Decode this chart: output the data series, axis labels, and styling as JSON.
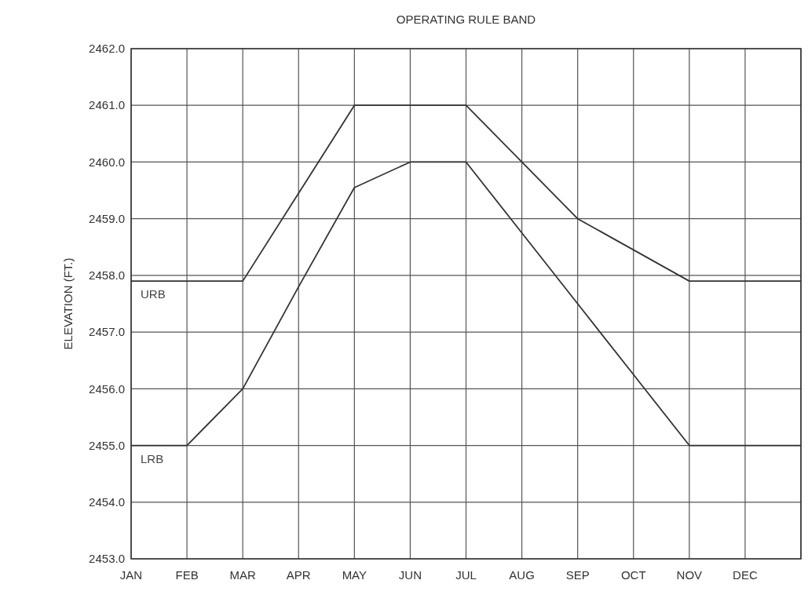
{
  "chart_data": {
    "type": "line",
    "title": "OPERATING RULE BAND",
    "ylabel": "ELEVATION (FT.)",
    "categories": [
      "JAN",
      "FEB",
      "MAR",
      "APR",
      "MAY",
      "JUN",
      "JUL",
      "AUG",
      "SEP",
      "OCT",
      "NOV",
      "DEC",
      null
    ],
    "series": [
      {
        "name": "URB",
        "color": "#333333",
        "values": [
          2457.9,
          2457.9,
          2457.9,
          2459.45,
          2461,
          2461,
          2461,
          2460,
          2459,
          2458.45,
          2457.9,
          2457.9,
          2457.9
        ]
      },
      {
        "name": "LRB",
        "color": "#333333",
        "values": [
          2455,
          2455,
          2456,
          2457.8,
          2459.55,
          2460,
          2460,
          2458.75,
          2457.5,
          2456.25,
          2455,
          2455,
          2455
        ]
      }
    ],
    "ylim": [
      2453,
      2462
    ],
    "yticks": [
      {
        "value": 2453,
        "label": "2453.0"
      },
      {
        "value": 2454,
        "label": "2454.0"
      },
      {
        "value": 2455,
        "label": "2455.0"
      },
      {
        "value": 2456,
        "label": "2456.0"
      },
      {
        "value": 2457,
        "label": "2457.0"
      },
      {
        "value": 2458,
        "label": "2458.0"
      },
      {
        "value": 2459,
        "label": "2459.0"
      },
      {
        "value": 2460,
        "label": "2460.0"
      },
      {
        "value": 2461,
        "label": "2461.0"
      },
      {
        "value": 2462,
        "label": "2462.0"
      }
    ],
    "grid": true,
    "marker": "none",
    "line_style": "solid"
  }
}
